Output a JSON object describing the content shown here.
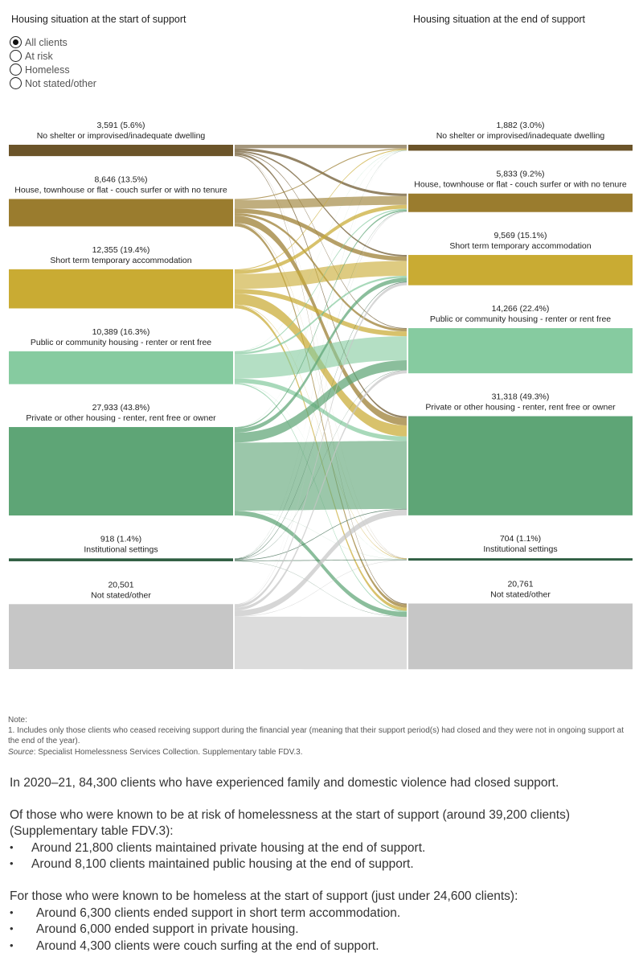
{
  "headers": {
    "left": "Housing situation at the start of support",
    "right": "Housing situation at the end of support"
  },
  "filter": {
    "options": [
      "All clients",
      "At risk",
      "Homeless",
      "Not stated/other"
    ],
    "selected": 0
  },
  "chart_data": {
    "type": "sankey",
    "source_nodes": [
      {
        "label": "No shelter or improvised/inadequate dwelling",
        "value": 3591,
        "value_text": "3,591 (5.6%)",
        "color": "#6b5429"
      },
      {
        "label": "House, townhouse or flat - couch surfer or with no tenure",
        "value": 8646,
        "value_text": "8,646 (13.5%)",
        "color": "#9a7c2e"
      },
      {
        "label": "Short term temporary accommodation",
        "value": 12355,
        "value_text": "12,355 (19.4%)",
        "color": "#c9ab33"
      },
      {
        "label": "Public or community housing - renter or rent free",
        "value": 10389,
        "value_text": "10,389 (16.3%)",
        "color": "#86cba0"
      },
      {
        "label": "Private or other housing - renter, rent free or owner",
        "value": 27933,
        "value_text": "27,933 (43.8%)",
        "color": "#5ea576"
      },
      {
        "label": "Institutional settings",
        "value": 918,
        "value_text": "918 (1.4%)",
        "color": "#2f5e42"
      },
      {
        "label": "Not stated/other",
        "value": 20501,
        "value_text": "20,501",
        "color": "#c6c6c6"
      }
    ],
    "target_nodes": [
      {
        "label": "No shelter or improvised/inadequate dwelling",
        "value": 1882,
        "value_text": "1,882 (3.0%)",
        "color": "#6b5429"
      },
      {
        "label": "House, townhouse or flat - couch surfer or with no tenure",
        "value": 5833,
        "value_text": "5,833 (9.2%)",
        "color": "#9a7c2e"
      },
      {
        "label": "Short term temporary accommodation",
        "value": 9569,
        "value_text": "9,569 (15.1%)",
        "color": "#c9ab33"
      },
      {
        "label": "Public or community housing - renter or rent free",
        "value": 14266,
        "value_text": "14,266 (22.4%)",
        "color": "#86cba0"
      },
      {
        "label": "Private or other housing - renter, rent free or owner",
        "value": 31318,
        "value_text": "31,318 (49.3%)",
        "color": "#5ea576"
      },
      {
        "label": "Institutional settings",
        "value": 704,
        "value_text": "704 (1.1%)",
        "color": "#2f5e42"
      },
      {
        "label": "Not stated/other",
        "value": 20761,
        "value_text": "20,761",
        "color": "#c6c6c6"
      }
    ],
    "flows": [
      [
        1090,
        800,
        500,
        250,
        600,
        50,
        301
      ],
      [
        300,
        2750,
        1400,
        800,
        2300,
        96,
        1000
      ],
      [
        300,
        1200,
        4700,
        1500,
        3500,
        155,
        1000
      ],
      [
        50,
        350,
        600,
        7600,
        1400,
        39,
        350
      ],
      [
        50,
        450,
        1300,
        3100,
        21500,
        33,
        1500
      ],
      [
        50,
        100,
        200,
        100,
        200,
        200,
        68
      ],
      [
        42,
        183,
        869,
        916,
        1818,
        131,
        16542
      ]
    ]
  },
  "notes": {
    "title": "Note:",
    "note1": "1.  Includes only those clients who ceased receiving support during the financial year (meaning that their support period(s) had closed and they were not in ongoing support at the end of the year).",
    "source_label": "Source",
    "source_text": ": Specialist Homelessness Services Collection. Supplementary table FDV.3."
  },
  "text": {
    "para1": "In 2020–21, 84,300 clients who have experienced family and domestic violence  had closed support.",
    "para2": "Of those who were known to be at risk of homelessness at the start of support (around 39,200 clients) (Supplementary table FDV.3):",
    "list1": [
      "Around 21,800 clients maintained private housing at the end of support.",
      "Around 8,100 clients maintained public housing at the end of support."
    ],
    "para3": "For those who were known to be homeless at the start of support (just under 24,600 clients):",
    "list2": [
      "Around 6,300 clients ended support in short term accommodation.",
      "Around 6,000 ended support in private housing.",
      "Around 4,300 clients were couch surfing at the end of support."
    ]
  }
}
